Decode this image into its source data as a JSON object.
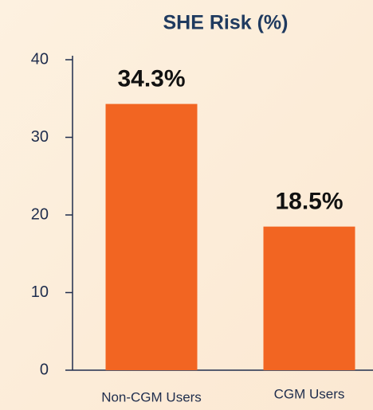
{
  "chart_data": {
    "type": "bar",
    "title": "SHE Risk (%)",
    "categories": [
      "Non-CGM Users",
      "CGM Users"
    ],
    "values": [
      34.3,
      18.5
    ],
    "value_labels": [
      "34.3%",
      "18.5%"
    ],
    "color": "#f26522",
    "ylim": [
      0,
      40
    ],
    "yticks": [
      0,
      10,
      20,
      30,
      40
    ],
    "grid": false
  }
}
